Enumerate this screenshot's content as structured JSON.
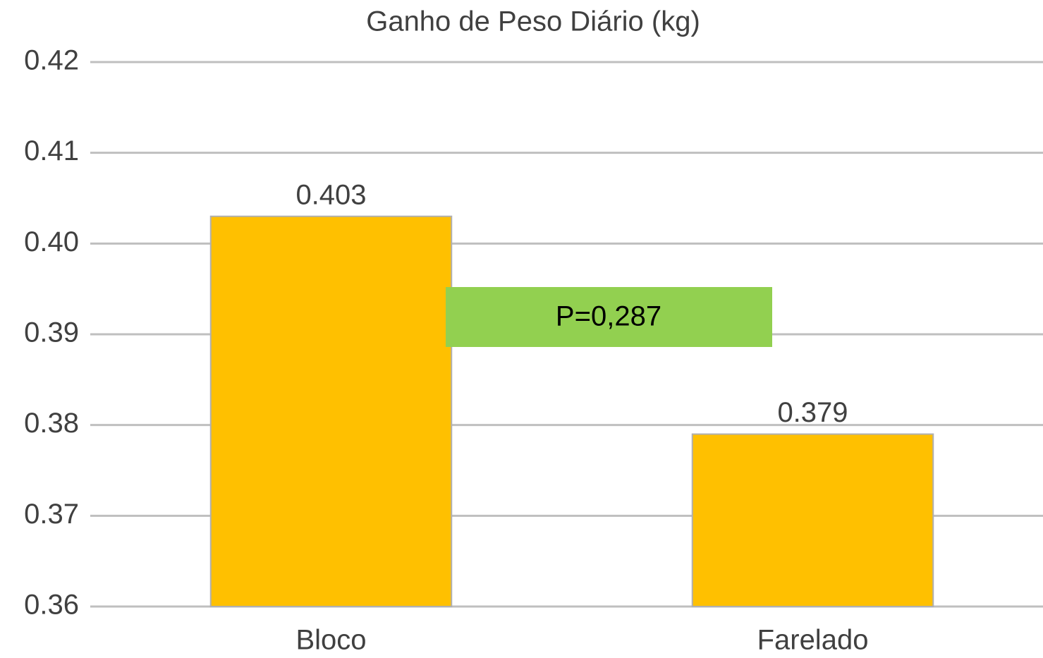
{
  "chart_data": {
    "type": "bar",
    "title": "Ganho de Peso Diário (kg)",
    "categories": [
      "Bloco",
      "Farelado"
    ],
    "values": [
      0.403,
      0.379
    ],
    "color": "#ffc000",
    "ylim": [
      0.36,
      0.42
    ],
    "yticks": [
      0.36,
      0.37,
      0.38,
      0.39,
      {
        "value": 0.4,
        "label": "0.40"
      },
      0.41,
      0.42
    ],
    "grid": true,
    "annotation": "P=0,287"
  }
}
